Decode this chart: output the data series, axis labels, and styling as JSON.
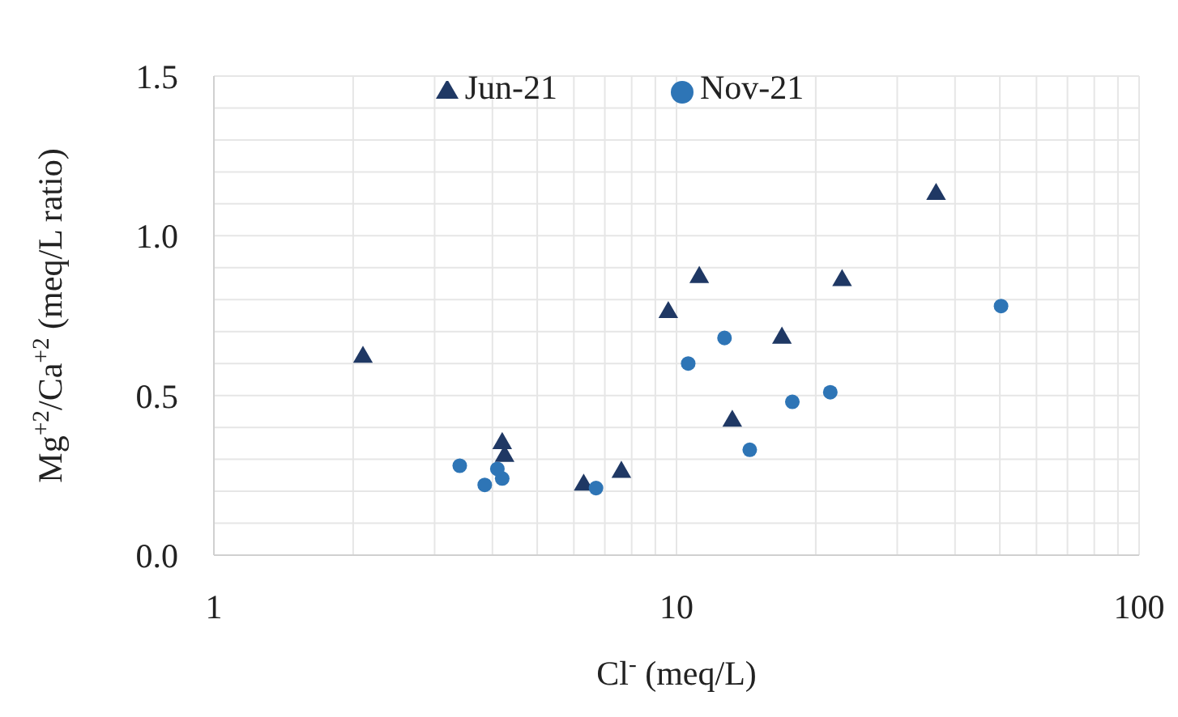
{
  "chart_data": {
    "type": "scatter",
    "xlabel": "Cl$^{-}$ (meq/L)",
    "ylabel": "Mg$^{+2}$/Ca$^{+2}$ (meq/L ratio)",
    "log": "x",
    "xlim": [
      1,
      100
    ],
    "xticks": [
      1,
      10,
      100
    ],
    "ylim": [
      0,
      1.5
    ],
    "yticks": [
      {
        "value": 0,
        "label": "0.0"
      },
      {
        "value": 0.5,
        "label": "0.5"
      },
      {
        "value": 1,
        "label": "1.0"
      },
      {
        "value": 1.5,
        "label": "1.5"
      }
    ],
    "grid": true,
    "legend": "top",
    "series": [
      {
        "name": "Jun-21",
        "color": "#1f3864",
        "marker": "triangle",
        "x": [
          2.1,
          4.2,
          4.25,
          6.3,
          7.6,
          9.6,
          11.2,
          36.4,
          22.8,
          16.9,
          13.2
        ],
        "values": [
          0.62,
          0.35,
          0.31,
          0.22,
          0.26,
          0.76,
          0.87,
          1.13,
          0.86,
          0.68,
          0.42
        ]
      },
      {
        "name": "Nov-21",
        "color": "#2e75b6",
        "marker": "circle",
        "x": [
          3.4,
          3.85,
          4.2,
          4.1,
          6.7,
          10.6,
          12.7,
          14.4,
          17.8,
          21.5,
          50.3
        ],
        "values": [
          0.28,
          0.22,
          0.24,
          0.27,
          0.21,
          0.6,
          0.68,
          0.33,
          0.48,
          0.51,
          0.78
        ]
      }
    ]
  }
}
